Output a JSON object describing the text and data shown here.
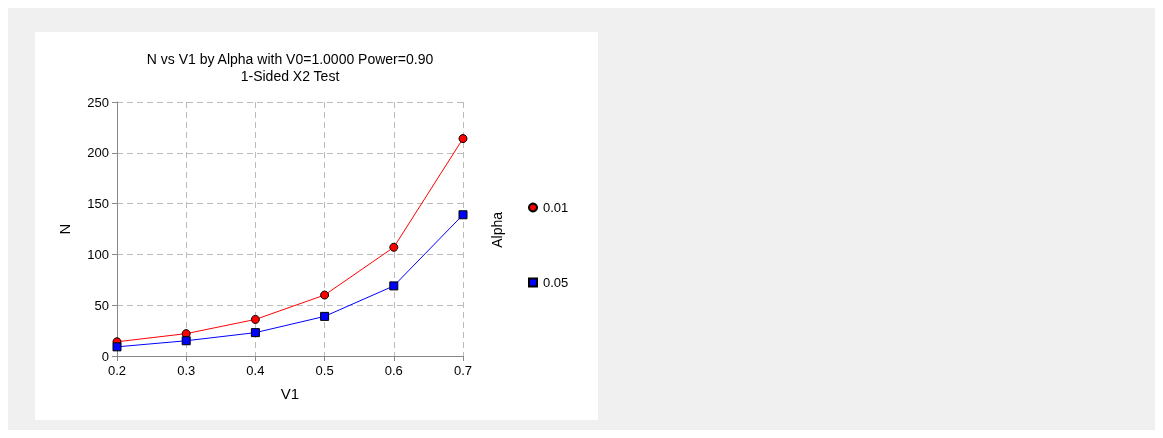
{
  "chart_data": {
    "type": "line",
    "title": "N vs V1 by Alpha with V0=1.0000 Power=0.90",
    "subtitle": "1-Sided X2 Test",
    "xlabel": "V1",
    "ylabel": "N",
    "legend_title": "Alpha",
    "x": [
      0.2,
      0.3,
      0.4,
      0.5,
      0.6,
      0.7
    ],
    "series": [
      {
        "name": "0.01",
        "color": "#ff0000",
        "marker": "circle",
        "values": [
          14,
          22,
          36,
          60,
          107,
          214
        ]
      },
      {
        "name": "0.05",
        "color": "#0000ff",
        "marker": "square",
        "values": [
          9,
          15,
          23,
          39,
          69,
          139
        ]
      }
    ],
    "xlim": [
      0.2,
      0.7
    ],
    "xticks": [
      0.2,
      0.3,
      0.4,
      0.5,
      0.6,
      0.7
    ],
    "ylim": [
      0,
      250
    ],
    "yticks": [
      0,
      50,
      100,
      150,
      200,
      250
    ],
    "grid": true,
    "legend": "right",
    "line_style": "solid"
  }
}
